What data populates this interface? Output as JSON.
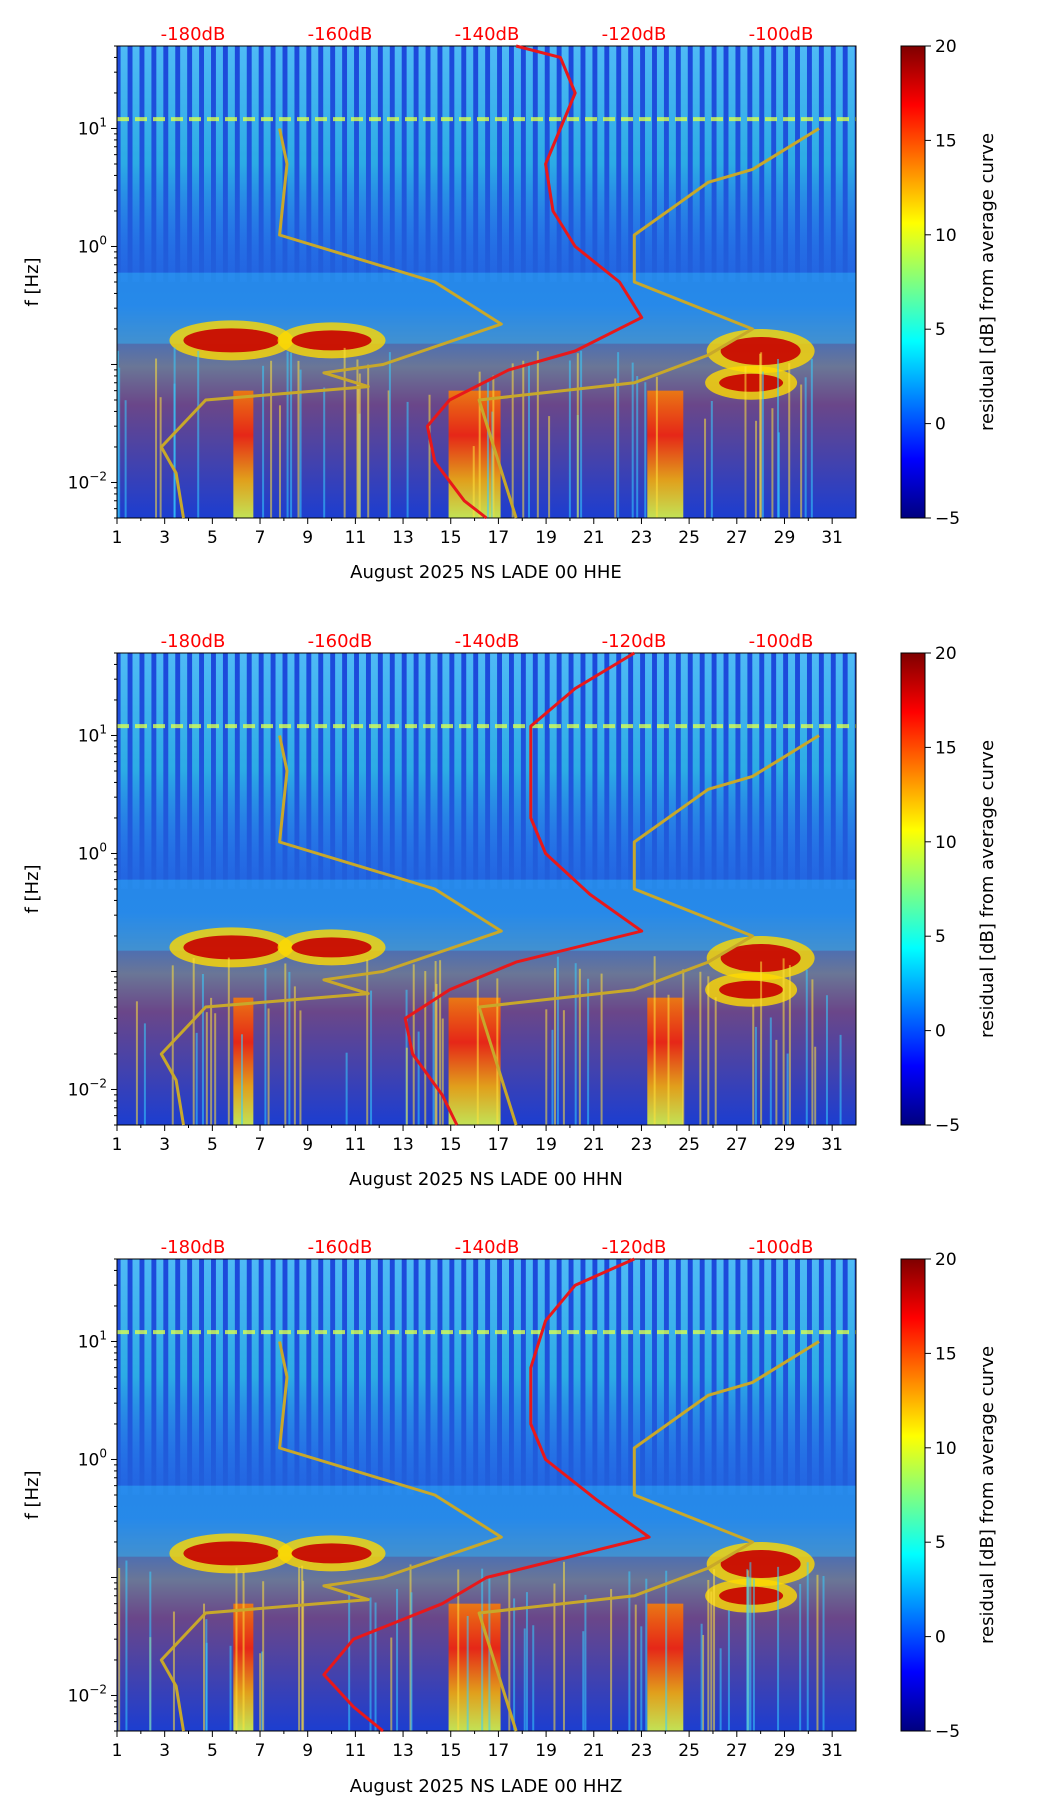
{
  "colors": {
    "psd_average_curve": "#e8181a",
    "noise_model_curve": "#c8a82a",
    "db_tick_text": "#ff0000",
    "colormap": "jet"
  },
  "chart_data": [
    {
      "type": "heatmap",
      "xlabel": "August 2025 NS LADE 00 HHE",
      "ylabel": "f [Hz]",
      "x_ticks": [
        "1",
        "3",
        "5",
        "7",
        "9",
        "11",
        "13",
        "15",
        "17",
        "19",
        "21",
        "23",
        "25",
        "27",
        "29",
        "31"
      ],
      "y_scale": "log",
      "y_ticks": [
        "10^-2",
        "10^0",
        "10^1"
      ],
      "y_range": [
        0.005,
        50
      ],
      "colorbar": {
        "label": "residual [dB] from average curve",
        "ticks": [
          -5,
          0,
          5,
          10,
          15,
          20
        ],
        "range": [
          -5,
          20
        ]
      },
      "db_ticks": [
        "-180dB",
        "-160dB",
        "-140dB",
        "-120dB",
        "-100dB"
      ],
      "curves": [
        {
          "role": "average",
          "points": [
            [
              -136,
              50
            ],
            [
              -130,
              40
            ],
            [
              -128,
              20
            ],
            [
              -130,
              10
            ],
            [
              -132,
              5
            ],
            [
              -131,
              2
            ],
            [
              -128,
              1
            ],
            [
              -122,
              0.5
            ],
            [
              -119,
              0.25
            ],
            [
              -128,
              0.13
            ],
            [
              -137,
              0.09
            ],
            [
              -145,
              0.05
            ],
            [
              -148,
              0.03
            ],
            [
              -147,
              0.015
            ],
            [
              -143,
              0.007
            ],
            [
              -140,
              0.005
            ]
          ]
        },
        {
          "role": "noise-model",
          "points": [
            [
              -168,
              10
            ],
            [
              -167,
              5
            ],
            [
              -168,
              1.25
            ],
            [
              -147,
              0.5
            ],
            [
              -138,
              0.22
            ],
            [
              -154,
              0.1
            ],
            [
              -162,
              0.085
            ],
            [
              -156,
              0.065
            ],
            [
              -178,
              0.05
            ],
            [
              -184,
              0.02
            ],
            [
              -182,
              0.012
            ],
            [
              -181,
              0.005
            ]
          ]
        },
        {
          "role": "noise-model-high",
          "points": [
            [
              -136,
              0.005
            ],
            [
              -141,
              0.05
            ],
            [
              -120,
              0.07
            ],
            [
              -110,
              0.12
            ],
            [
              -104,
              0.2
            ],
            [
              -120,
              0.5
            ],
            [
              -120,
              1.25
            ],
            [
              -110,
              3.5
            ],
            [
              -104,
              4.5
            ],
            [
              -95,
              10
            ]
          ]
        }
      ]
    },
    {
      "type": "heatmap",
      "xlabel": "August 2025 NS LADE 00 HHN",
      "ylabel": "f [Hz]",
      "x_ticks": [
        "1",
        "3",
        "5",
        "7",
        "9",
        "11",
        "13",
        "15",
        "17",
        "19",
        "21",
        "23",
        "25",
        "27",
        "29",
        "31"
      ],
      "y_scale": "log",
      "y_ticks": [
        "10^-2",
        "10^0",
        "10^1"
      ],
      "y_range": [
        0.005,
        50
      ],
      "colorbar": {
        "label": "residual [dB] from average curve",
        "ticks": [
          -5,
          0,
          5,
          10,
          15,
          20
        ],
        "range": [
          -5,
          20
        ]
      },
      "db_ticks": [
        "-180dB",
        "-160dB",
        "-140dB",
        "-120dB",
        "-100dB"
      ],
      "curves": [
        {
          "role": "average",
          "points": [
            [
              -120,
              50
            ],
            [
              -128,
              25
            ],
            [
              -134,
              12
            ],
            [
              -134,
              5
            ],
            [
              -134,
              2
            ],
            [
              -132,
              1
            ],
            [
              -126,
              0.45
            ],
            [
              -119,
              0.22
            ],
            [
              -136,
              0.12
            ],
            [
              -145,
              0.07
            ],
            [
              -151,
              0.04
            ],
            [
              -150,
              0.02
            ],
            [
              -146,
              0.009
            ],
            [
              -144,
              0.005
            ]
          ]
        },
        {
          "role": "noise-model",
          "points": [
            [
              -168,
              10
            ],
            [
              -167,
              5
            ],
            [
              -168,
              1.25
            ],
            [
              -147,
              0.5
            ],
            [
              -138,
              0.22
            ],
            [
              -154,
              0.1
            ],
            [
              -162,
              0.085
            ],
            [
              -156,
              0.065
            ],
            [
              -178,
              0.05
            ],
            [
              -184,
              0.02
            ],
            [
              -182,
              0.012
            ],
            [
              -181,
              0.005
            ]
          ]
        },
        {
          "role": "noise-model-high",
          "points": [
            [
              -136,
              0.005
            ],
            [
              -141,
              0.05
            ],
            [
              -120,
              0.07
            ],
            [
              -110,
              0.12
            ],
            [
              -104,
              0.2
            ],
            [
              -120,
              0.5
            ],
            [
              -120,
              1.25
            ],
            [
              -110,
              3.5
            ],
            [
              -104,
              4.5
            ],
            [
              -95,
              10
            ]
          ]
        }
      ]
    },
    {
      "type": "heatmap",
      "xlabel": "August 2025 NS LADE 00 HHZ",
      "ylabel": "f [Hz]",
      "x_ticks": [
        "1",
        "3",
        "5",
        "7",
        "9",
        "11",
        "13",
        "15",
        "17",
        "19",
        "21",
        "23",
        "25",
        "27",
        "29",
        "31"
      ],
      "y_scale": "log",
      "y_ticks": [
        "10^-2",
        "10^0",
        "10^1"
      ],
      "y_range": [
        0.005,
        50
      ],
      "colorbar": {
        "label": "residual [dB] from average curve",
        "ticks": [
          -5,
          0,
          5,
          10,
          15,
          20
        ],
        "range": [
          -5,
          20
        ]
      },
      "db_ticks": [
        "-180dB",
        "-160dB",
        "-140dB",
        "-120dB",
        "-100dB"
      ],
      "curves": [
        {
          "role": "average",
          "points": [
            [
              -120,
              50
            ],
            [
              -128,
              30
            ],
            [
              -132,
              15
            ],
            [
              -134,
              6
            ],
            [
              -134,
              2
            ],
            [
              -132,
              1
            ],
            [
              -125,
              0.45
            ],
            [
              -118,
              0.22
            ],
            [
              -140,
              0.1
            ],
            [
              -146,
              0.06
            ],
            [
              -158,
              0.03
            ],
            [
              -162,
              0.015
            ],
            [
              -158,
              0.008
            ],
            [
              -154,
              0.005
            ]
          ]
        },
        {
          "role": "noise-model",
          "points": [
            [
              -168,
              10
            ],
            [
              -167,
              5
            ],
            [
              -168,
              1.25
            ],
            [
              -147,
              0.5
            ],
            [
              -138,
              0.22
            ],
            [
              -154,
              0.1
            ],
            [
              -162,
              0.085
            ],
            [
              -156,
              0.065
            ],
            [
              -178,
              0.05
            ],
            [
              -184,
              0.02
            ],
            [
              -182,
              0.012
            ],
            [
              -181,
              0.005
            ]
          ]
        },
        {
          "role": "noise-model-high",
          "points": [
            [
              -136,
              0.005
            ],
            [
              -141,
              0.05
            ],
            [
              -120,
              0.07
            ],
            [
              -110,
              0.12
            ],
            [
              -104,
              0.2
            ],
            [
              -120,
              0.5
            ],
            [
              -120,
              1.25
            ],
            [
              -110,
              3.5
            ],
            [
              -104,
              4.5
            ],
            [
              -95,
              10
            ]
          ]
        }
      ]
    }
  ]
}
